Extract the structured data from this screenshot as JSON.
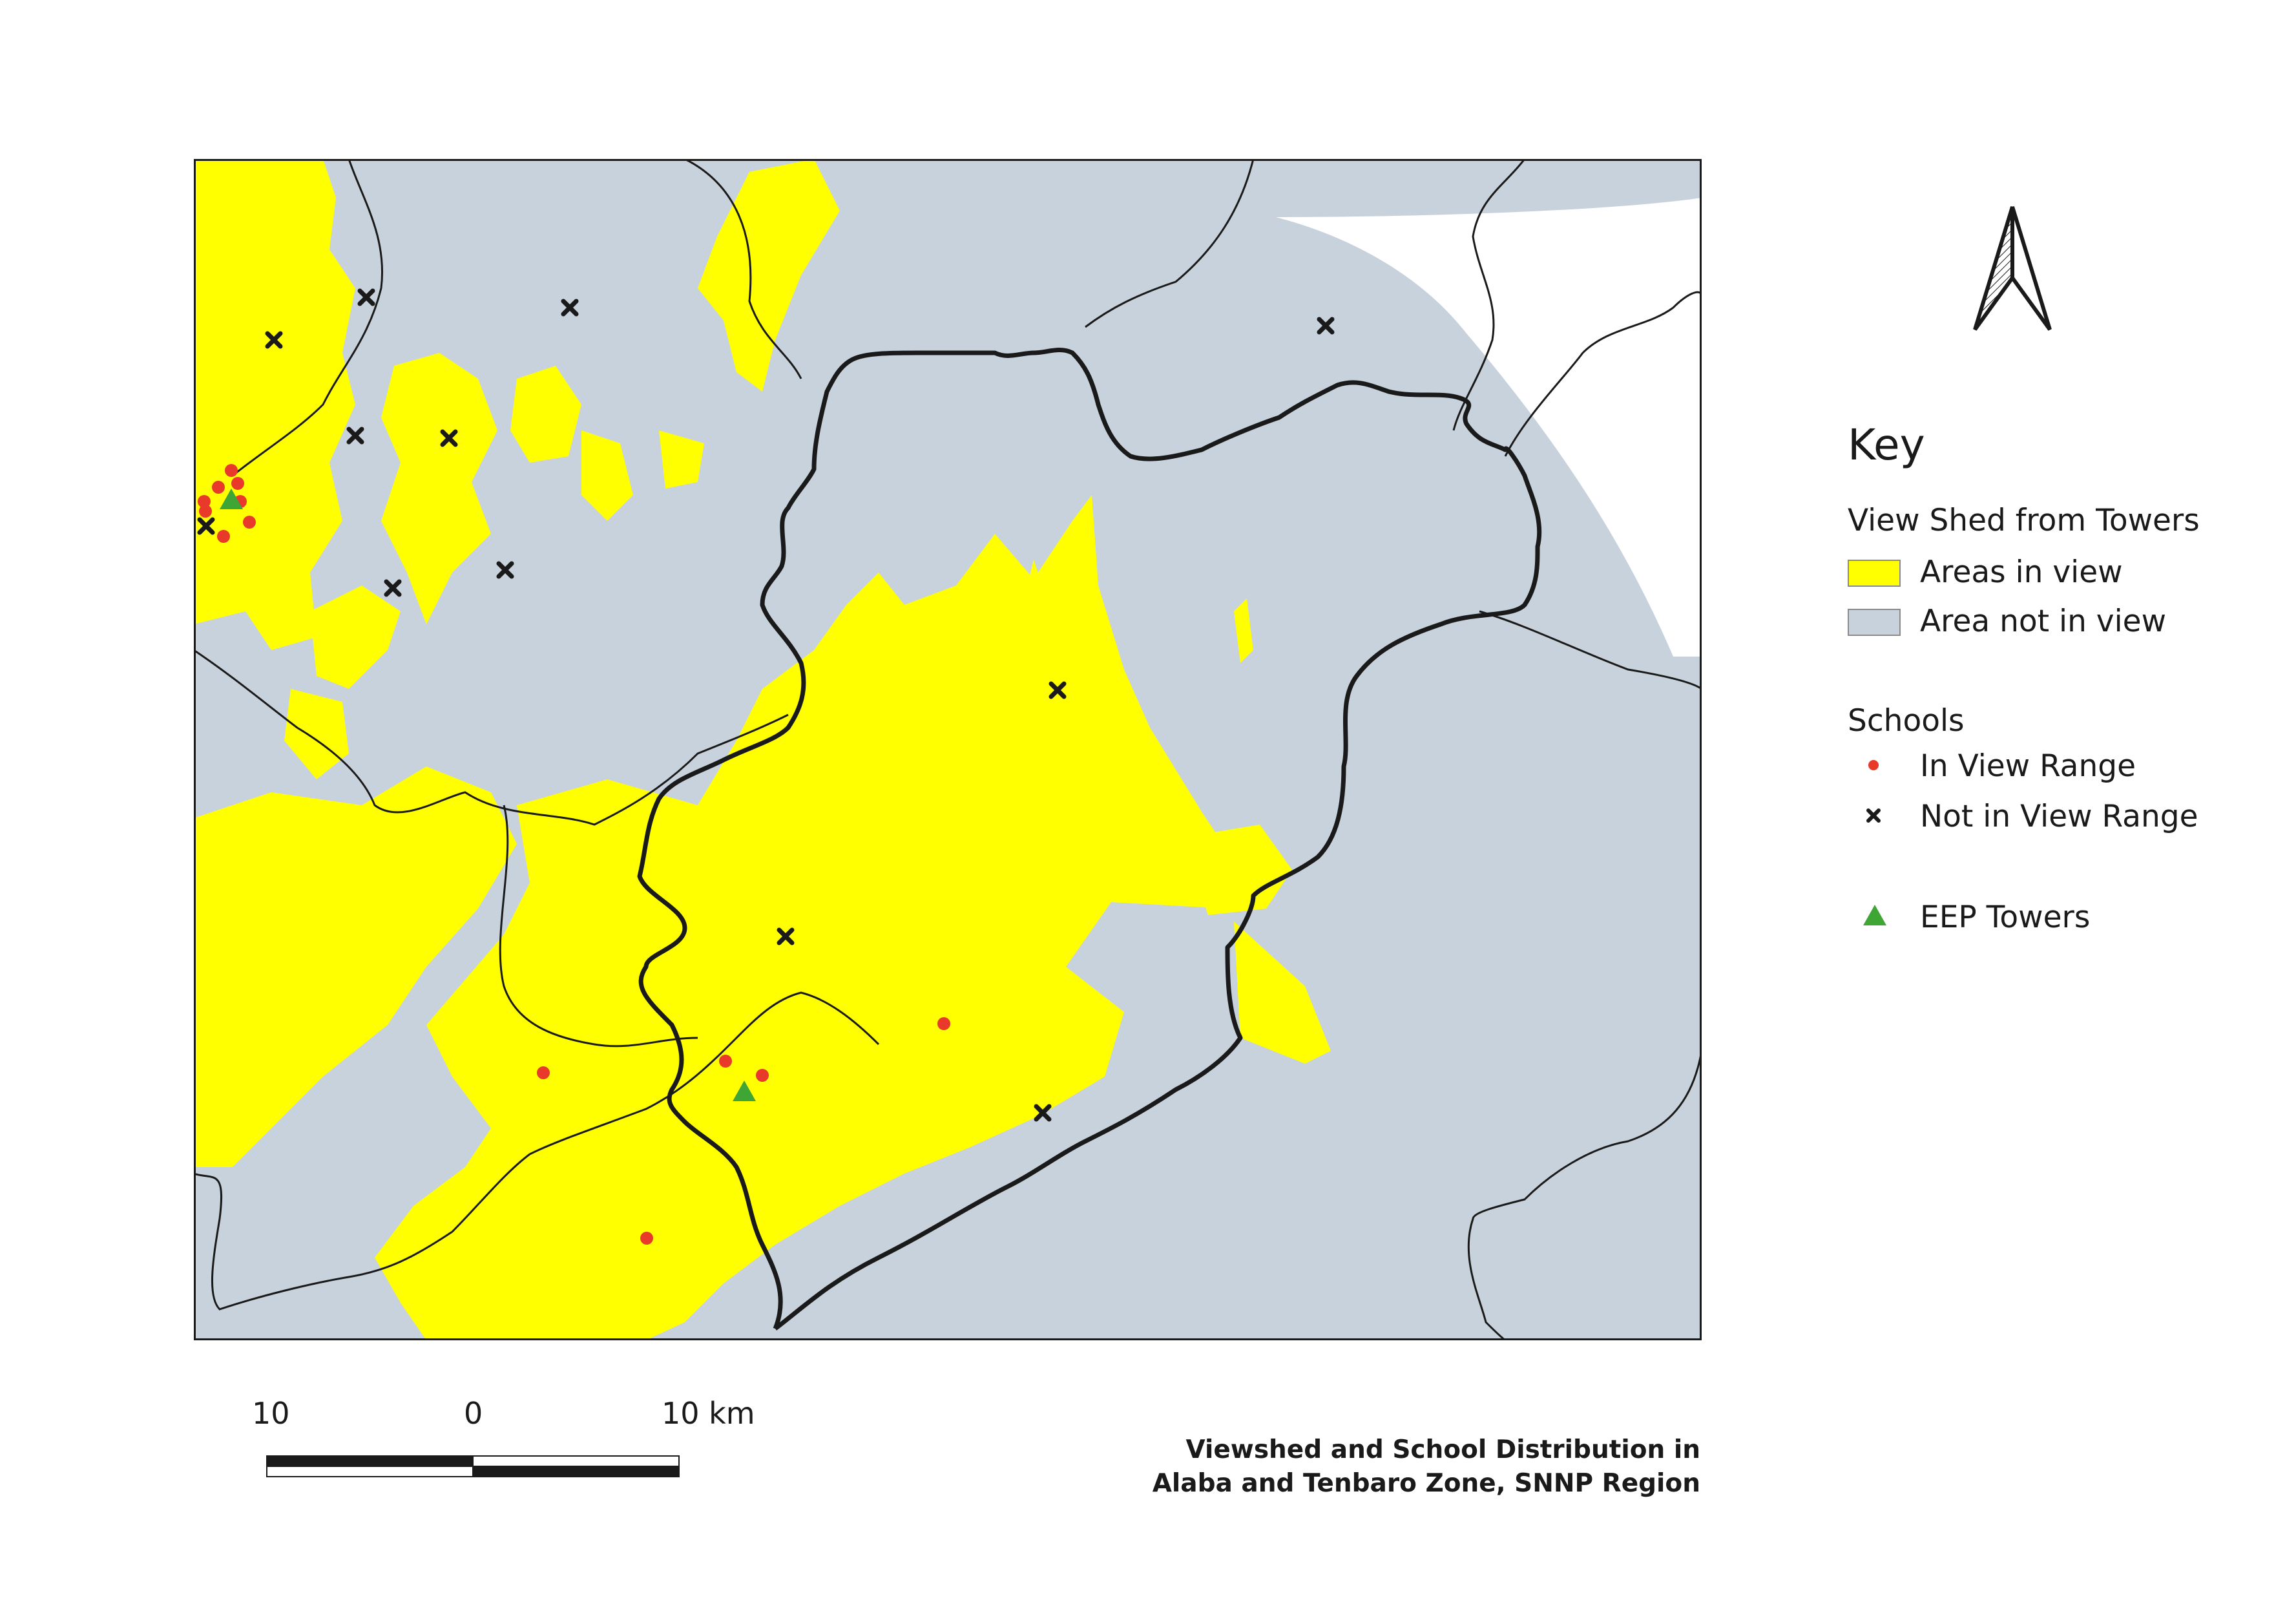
{
  "map": {
    "title_line1": "Viewshed and School Distribution in",
    "title_line2": "Alaba and Tenbaro Zone, SNNP Region",
    "colors": {
      "in_view": "#ffff00",
      "not_in_view": "#c8d2dc",
      "outside": "#ffffff",
      "boundary": "#1a1a1a",
      "school_in_view": "#e8392a",
      "school_not_in_view": "#1a1a1a",
      "tower": "#3fa535"
    },
    "north_arrow_icon": "north-arrow-icon",
    "scale_bar": {
      "labels": [
        "10",
        "0",
        "10 km"
      ]
    }
  },
  "legend": {
    "title": "Key",
    "viewshed": {
      "heading": "View Shed from Towers",
      "in_view_label": "Areas in view",
      "not_in_view_label": "Area not in view"
    },
    "schools": {
      "heading": "Schools",
      "in_view_label": "In View Range",
      "not_in_view_label": "Not in View Range"
    },
    "towers": {
      "label": "EEP Towers"
    }
  }
}
